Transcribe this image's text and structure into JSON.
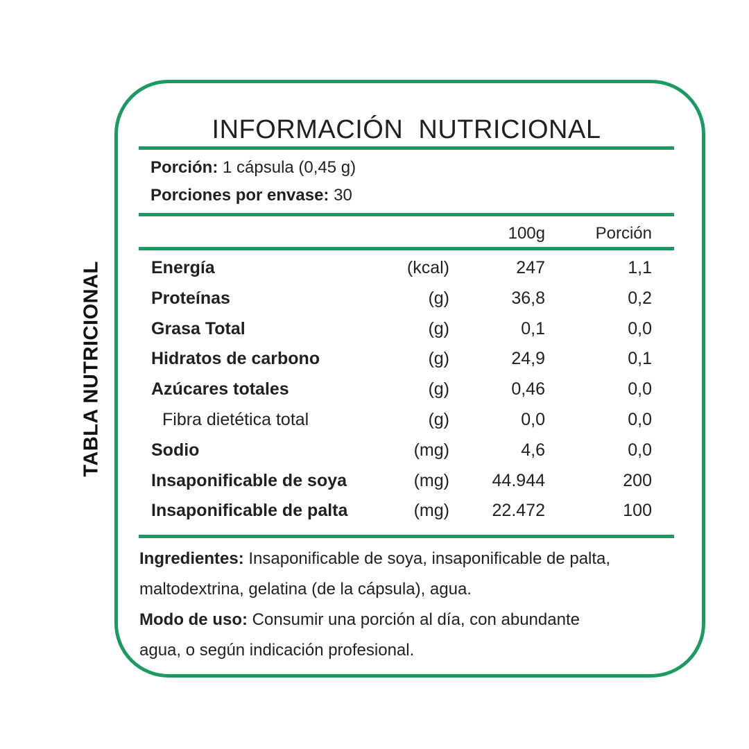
{
  "side_label": "TABLA NUTRICIONAL",
  "title": "INFORMACIÓN  NUTRICIONAL",
  "serving": {
    "portion_label": "Porción:",
    "portion_value": " 1 cápsula (0,45 g)",
    "servings_label": "Porciones por envase:",
    "servings_value": " 30"
  },
  "columns": {
    "per_100g": "100g",
    "per_portion": "Porción"
  },
  "nutrients": [
    {
      "name": "Energía",
      "unit": "(kcal)",
      "per_100g": "247",
      "per_portion": "1,1"
    },
    {
      "name": "Proteínas",
      "unit": "(g)",
      "per_100g": "36,8",
      "per_portion": "0,2"
    },
    {
      "name": "Grasa Total",
      "unit": "(g)",
      "per_100g": "0,1",
      "per_portion": "0,0"
    },
    {
      "name": "Hidratos de carbono",
      "unit": "(g)",
      "per_100g": "24,9",
      "per_portion": "0,1"
    },
    {
      "name": "Azúcares totales",
      "unit": "(g)",
      "per_100g": "0,46",
      "per_portion": "0,0"
    },
    {
      "name": "Fibra dietética total",
      "unit": "(g)",
      "per_100g": "0,0",
      "per_portion": "0,0"
    },
    {
      "name": "Sodio",
      "unit": "(mg)",
      "per_100g": "4,6",
      "per_portion": "0,0"
    },
    {
      "name": "Insaponificable de soya",
      "unit": "(mg)",
      "per_100g": "44.944",
      "per_portion": "200"
    },
    {
      "name": "Insaponificable de palta",
      "unit": "(mg)",
      "per_100g": "22.472",
      "per_portion": "100"
    }
  ],
  "ingredients": {
    "label": "Ingredientes:",
    "line1": " Insaponificable de soya, insaponificable de palta,",
    "line2": "maltodextrina, gelatina (de la cápsula), agua."
  },
  "usage": {
    "label": "Modo de uso:",
    "line1": " Consumir una porción al día, con abundante",
    "line2": "agua, o según indicación profesional."
  },
  "colors": {
    "accent": "#1d9a62",
    "text": "#231f20"
  }
}
